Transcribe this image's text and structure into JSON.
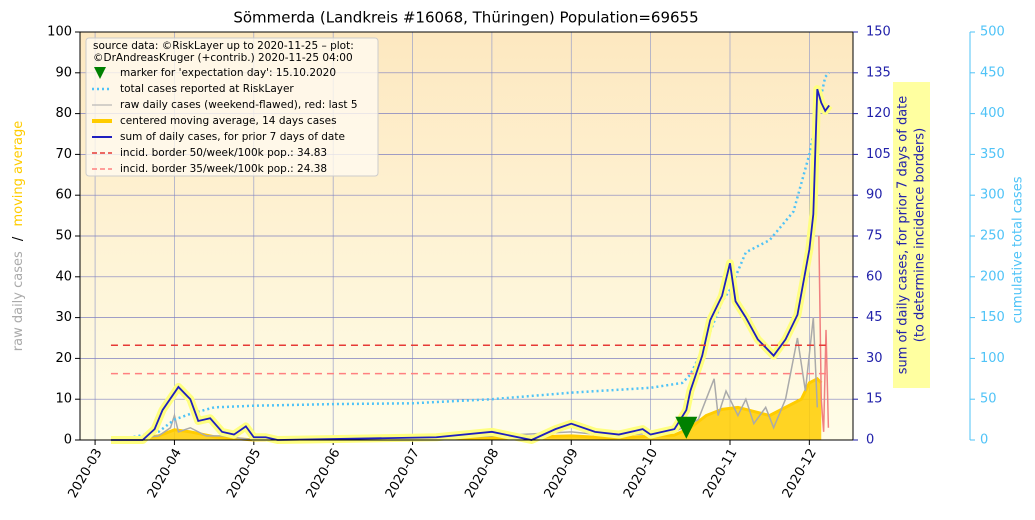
{
  "chart_data": {
    "type": "line",
    "title": "Sömmerda (Landkreis #16068, Thüringen) Population=69655",
    "note": [
      "source data: ©RiskLayer up to 2020-11-25 – plot:",
      "©DrAndreasKruger (+contrib.) 2020-11-25 04:00"
    ],
    "y_label_parts": [
      {
        "text": "raw daily cases",
        "color": "#aaaaaa"
      },
      {
        "text": "/",
        "color": "#000000"
      },
      {
        "text": "moving average",
        "color": "#ffcc00"
      }
    ],
    "y2_label": [
      "sum of daily cases, for prior 7 days of date",
      "(to determine incidence borders)"
    ],
    "y3_label": "cumulative total cases",
    "xlim": [
      -0.19,
      9.55
    ],
    "xticks": [
      {
        "value": 0,
        "label": "2020-03"
      },
      {
        "value": 1,
        "label": "2020-04"
      },
      {
        "value": 2,
        "label": "2020-05"
      },
      {
        "value": 3,
        "label": "2020-06"
      },
      {
        "value": 4,
        "label": "2020-07"
      },
      {
        "value": 5,
        "label": "2020-08"
      },
      {
        "value": 6,
        "label": "2020-09"
      },
      {
        "value": 7,
        "label": "2020-10"
      },
      {
        "value": 8,
        "label": "2020-11"
      },
      {
        "value": 9,
        "label": "2020-12"
      }
    ],
    "ylim": [
      0,
      100
    ],
    "yticks": [
      0,
      10,
      20,
      30,
      40,
      50,
      60,
      70,
      80,
      90,
      100
    ],
    "y2lim": [
      0,
      150
    ],
    "y2ticks": [
      0,
      15,
      30,
      45,
      60,
      75,
      90,
      105,
      120,
      135,
      150
    ],
    "y3lim": [
      0,
      500
    ],
    "y3ticks": [
      0,
      50,
      100,
      150,
      200,
      250,
      300,
      350,
      400,
      450,
      500
    ],
    "grid": true,
    "marker": {
      "name": "marker for 'expectation day': 15.10.2020",
      "x": 7.45,
      "y": 3,
      "color": "#008000"
    },
    "series": [
      {
        "name": "total cases reported at RiskLayer",
        "style": "dotted",
        "color": "#4fc3f7",
        "axis": "y3",
        "x": [
          0.3,
          0.8,
          1.0,
          1.2,
          1.5,
          2.0,
          3.0,
          4.0,
          5.0,
          6.0,
          7.0,
          7.4,
          7.5,
          7.7,
          7.9,
          8.0,
          8.2,
          8.5,
          8.8,
          9.0,
          9.1,
          9.2,
          9.25
        ],
        "values": [
          0,
          10,
          25,
          32,
          40,
          42,
          44,
          45,
          50,
          58,
          64,
          70,
          80,
          120,
          170,
          184,
          230,
          245,
          280,
          350,
          400,
          445,
          450
        ]
      },
      {
        "name": "raw daily cases (weekend-flawed), red: last 5",
        "style": "thin",
        "color": "#aaaaaa",
        "axis": "y",
        "highlight_last": 5,
        "highlight_color": "#f08080",
        "x": [
          0.3,
          0.8,
          0.95,
          1.0,
          1.05,
          1.2,
          1.4,
          1.6,
          2.0,
          3.0,
          4.0,
          5.0,
          6.0,
          6.5,
          7.3,
          7.6,
          7.7,
          7.8,
          7.85,
          7.95,
          8.1,
          8.2,
          8.3,
          8.45,
          8.55,
          8.7,
          8.85,
          8.95,
          9.05,
          9.1,
          9.12,
          9.15,
          9.18,
          9.21,
          9.24
        ],
        "values": [
          0,
          1,
          3,
          6,
          2,
          3,
          1,
          1,
          0,
          0,
          0,
          1,
          2,
          1,
          2,
          5,
          10,
          15,
          6,
          12,
          6,
          10,
          4,
          8,
          3,
          10,
          25,
          12,
          30,
          8,
          50,
          10,
          2,
          27,
          3
        ]
      },
      {
        "name": "centered moving average, 14 days cases",
        "style": "area",
        "color": "#ffcc00",
        "axis": "y",
        "x": [
          0.3,
          0.8,
          1.0,
          1.2,
          1.5,
          1.8,
          2.0,
          5.0,
          6.0,
          6.5,
          7.3,
          7.5,
          7.7,
          7.9,
          8.1,
          8.3,
          8.5,
          8.7,
          8.9,
          9.0,
          9.1,
          9.15
        ],
        "values": [
          0,
          1,
          2.5,
          2,
          0.8,
          0.3,
          0,
          0.5,
          1,
          0.5,
          1.2,
          3,
          6,
          7.5,
          8,
          7,
          6,
          8,
          10,
          14,
          15,
          14
        ]
      },
      {
        "name": "sum of daily cases, for prior 7 days of date",
        "style": "halo",
        "color": "#1f1fbf",
        "axis": "y2",
        "x": [
          0.2,
          0.6,
          0.75,
          0.85,
          1.05,
          1.2,
          1.3,
          1.45,
          1.6,
          1.75,
          1.9,
          2.0,
          2.15,
          2.3,
          4.3,
          5.0,
          5.5,
          5.8,
          6.0,
          6.3,
          6.6,
          6.9,
          7.0,
          7.3,
          7.45,
          7.5,
          7.65,
          7.75,
          7.9,
          8.0,
          8.07,
          8.2,
          8.35,
          8.55,
          8.7,
          8.85,
          9.0,
          9.05,
          9.1,
          9.15,
          9.2,
          9.25
        ],
        "values": [
          0,
          0,
          4,
          11,
          19.5,
          15,
          7,
          8,
          3,
          2,
          5,
          1,
          1,
          0,
          1,
          3,
          0,
          4,
          6,
          3,
          2,
          4,
          2,
          4,
          11,
          18,
          31,
          44,
          53,
          65,
          51,
          45,
          37,
          31,
          37,
          46,
          70,
          83,
          129,
          124,
          121,
          123
        ]
      }
    ],
    "borders": [
      {
        "name": "incid. border 50/week/100k pop.: 34.83",
        "value": 34.83,
        "color": "#e53935",
        "axis": "y2"
      },
      {
        "name": "incid. border 35/week/100k pop.: 24.38",
        "value": 24.38,
        "color": "#ff8080",
        "axis": "y2"
      }
    ]
  }
}
